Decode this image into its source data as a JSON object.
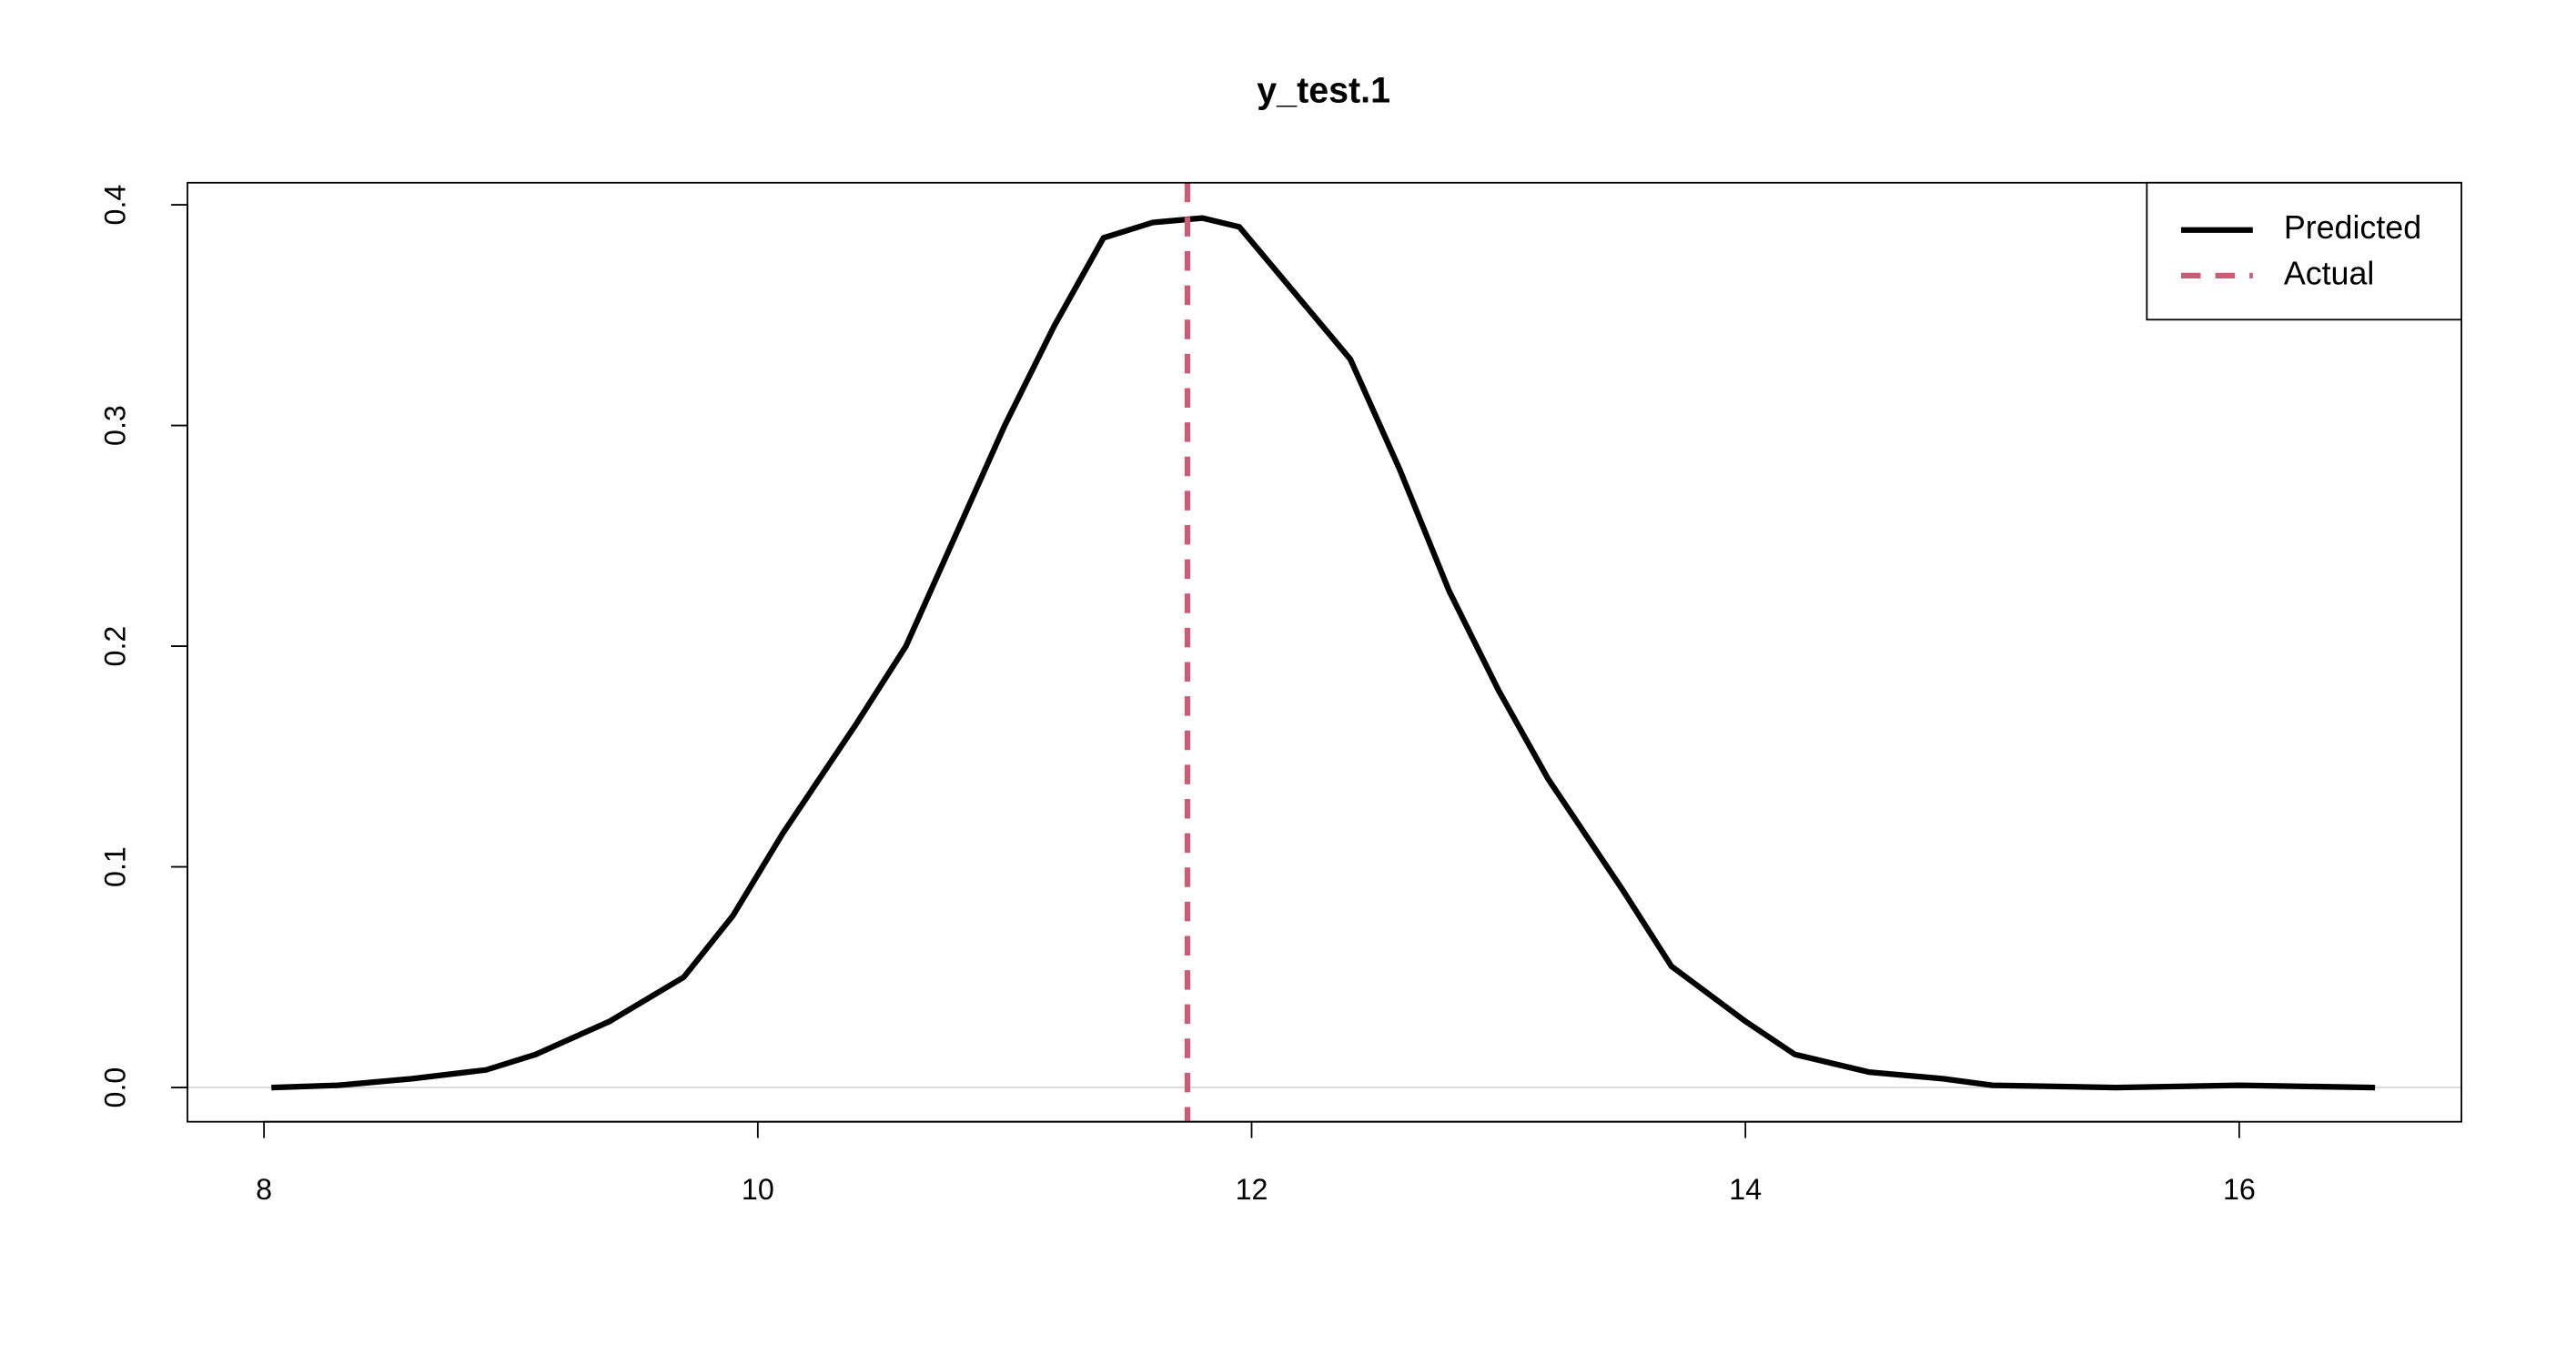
{
  "chart_data": {
    "type": "line",
    "title": "y_test.1",
    "series": [
      {
        "name": "Predicted",
        "color": "#000000",
        "x": [
          8.03,
          8.3,
          8.6,
          8.9,
          9.1,
          9.4,
          9.7,
          9.9,
          10.1,
          10.4,
          10.6,
          10.8,
          11.0,
          11.2,
          11.4,
          11.6,
          11.8,
          11.95,
          12.1,
          12.4,
          12.6,
          12.8,
          13.0,
          13.2,
          13.5,
          13.7,
          14.0,
          14.2,
          14.5,
          14.8,
          15.0,
          15.5,
          16.0,
          16.55
        ],
        "values": [
          0.0,
          0.001,
          0.004,
          0.008,
          0.015,
          0.03,
          0.05,
          0.078,
          0.115,
          0.165,
          0.2,
          0.25,
          0.3,
          0.345,
          0.385,
          0.392,
          0.394,
          0.39,
          0.37,
          0.33,
          0.28,
          0.225,
          0.18,
          0.14,
          0.09,
          0.055,
          0.03,
          0.015,
          0.007,
          0.004,
          0.001,
          0.0,
          0.001,
          0.0
        ]
      }
    ],
    "reference_lines": [
      {
        "name": "Actual",
        "x": 11.74,
        "color": "#cd5a77",
        "dashed": true
      }
    ],
    "hline": {
      "y": 0,
      "color": "#d9d9d9"
    },
    "xlim": [
      7.69,
      16.9
    ],
    "ylim": [
      -0.0155,
      0.41
    ],
    "xticks": [
      8,
      10,
      12,
      14,
      16
    ],
    "yticks": [
      {
        "value": 0,
        "label": "0.0"
      },
      0.1,
      0.2,
      0.3,
      0.4
    ],
    "legend": "topright"
  }
}
